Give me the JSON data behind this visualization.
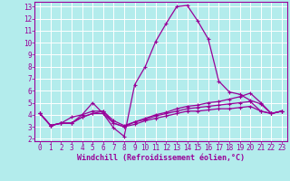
{
  "xlabel": "Windchill (Refroidissement éolien,°C)",
  "background_color": "#b3ecec",
  "grid_color": "#ffffff",
  "line_color": "#990099",
  "x_values": [
    0,
    1,
    2,
    3,
    4,
    5,
    6,
    7,
    8,
    9,
    10,
    11,
    12,
    13,
    14,
    15,
    16,
    17,
    18,
    19,
    20,
    21,
    22,
    23
  ],
  "series": [
    [
      4.1,
      3.1,
      3.3,
      3.3,
      4.0,
      5.0,
      4.1,
      2.9,
      2.2,
      6.5,
      8.0,
      10.1,
      11.6,
      13.0,
      13.1,
      11.8,
      10.3,
      6.8,
      5.9,
      5.7,
      5.2,
      4.9,
      4.1,
      4.3
    ],
    [
      4.1,
      3.1,
      3.3,
      3.8,
      4.0,
      4.3,
      4.3,
      3.5,
      3.1,
      3.4,
      3.7,
      4.0,
      4.2,
      4.5,
      4.7,
      4.8,
      5.0,
      5.1,
      5.3,
      5.5,
      5.8,
      5.0,
      4.1,
      4.3
    ],
    [
      4.1,
      3.1,
      3.3,
      3.3,
      3.8,
      4.1,
      4.3,
      3.3,
      3.0,
      3.4,
      3.6,
      3.9,
      4.1,
      4.3,
      4.5,
      4.6,
      4.7,
      4.8,
      4.9,
      5.0,
      5.1,
      4.3,
      4.1,
      4.3
    ],
    [
      4.1,
      3.1,
      3.3,
      3.3,
      3.8,
      4.1,
      4.1,
      3.3,
      3.0,
      3.2,
      3.5,
      3.7,
      3.9,
      4.1,
      4.3,
      4.3,
      4.4,
      4.5,
      4.5,
      4.6,
      4.7,
      4.3,
      4.1,
      4.3
    ]
  ],
  "ylim": [
    1.8,
    13.4
  ],
  "xlim": [
    -0.5,
    23.5
  ],
  "yticks": [
    2,
    3,
    4,
    5,
    6,
    7,
    8,
    9,
    10,
    11,
    12,
    13
  ],
  "xticks": [
    0,
    1,
    2,
    3,
    4,
    5,
    6,
    7,
    8,
    9,
    10,
    11,
    12,
    13,
    14,
    15,
    16,
    17,
    18,
    19,
    20,
    21,
    22,
    23
  ],
  "tick_color": "#990099",
  "label_color": "#990099",
  "spine_color": "#990099",
  "tick_fontsize": 5.5,
  "xlabel_fontsize": 6.0,
  "linewidth": 0.9,
  "markersize": 2.5
}
